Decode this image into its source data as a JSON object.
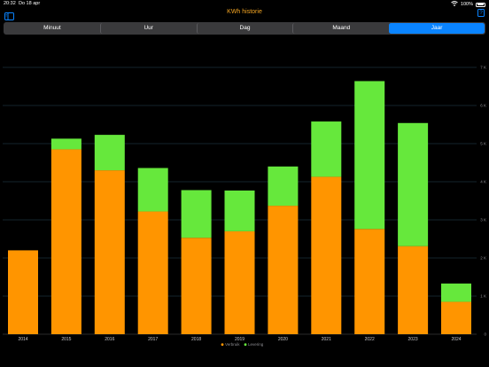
{
  "status": {
    "time": "20:32",
    "date": "Do 18 apr",
    "battery": "100%"
  },
  "nav": {
    "title": "KWh historie"
  },
  "segments": [
    "Minuut",
    "Uur",
    "Dag",
    "Maand",
    "Jaar"
  ],
  "active_segment": 4,
  "icons": {
    "sidebar": "sidebar-icon",
    "help": "help-icon",
    "wifi": "wifi-icon",
    "battery": "battery-icon"
  },
  "colors": {
    "accent": "#0a84ff",
    "title": "#f5a623",
    "verbruik": "#ff9500",
    "levering": "#66e83c",
    "grid": "#2a4a58"
  },
  "chart_data": {
    "type": "bar",
    "stacked": true,
    "categories": [
      "2014",
      "2015",
      "2016",
      "2017",
      "2018",
      "2019",
      "2020",
      "2021",
      "2022",
      "2023",
      "2024"
    ],
    "series": [
      {
        "name": "Verbruik",
        "color": "#ff9500",
        "values": [
          2200,
          4850,
          4300,
          3220,
          2530,
          2700,
          3370,
          4130,
          2760,
          2310,
          850
        ]
      },
      {
        "name": "Levering",
        "color": "#66e83c",
        "values": [
          0,
          280,
          930,
          1140,
          1250,
          1070,
          1030,
          1450,
          3880,
          3230,
          480
        ]
      }
    ],
    "ylim": [
      0,
      7000
    ],
    "yticks": [
      "0",
      "1 K",
      "2 K",
      "3 K",
      "4 K",
      "5 K",
      "6 K",
      "7 K"
    ],
    "grid": true,
    "legend_position": "bottom"
  }
}
